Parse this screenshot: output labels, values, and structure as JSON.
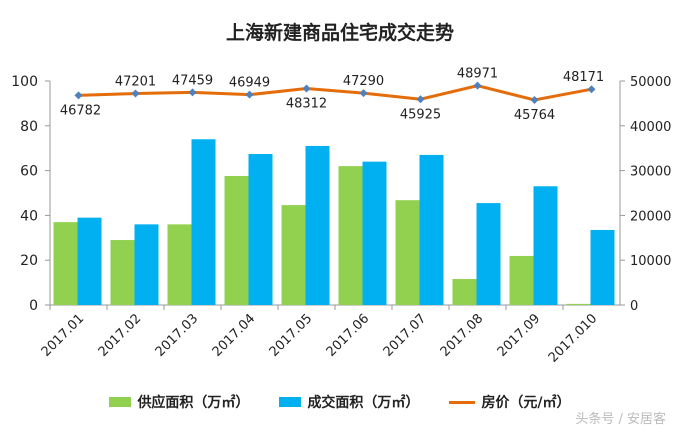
{
  "chart_data": {
    "type": "bar",
    "title": "上海新建商品住宅成交走势",
    "categories": [
      "2017.01",
      "2017.02",
      "2017.03",
      "2017.04",
      "2017.05",
      "2017.06",
      "2017.07",
      "2017.08",
      "2017.09",
      "2017.010"
    ],
    "series": [
      {
        "name": "供应面积（万㎡）",
        "type": "bar",
        "axis": "left",
        "color": "#92d050",
        "values": [
          37,
          29,
          36,
          57.6,
          44.6,
          62,
          46.8,
          11.6,
          21.9,
          0.5
        ]
      },
      {
        "name": "成交面积（万㎡）",
        "type": "bar",
        "axis": "left",
        "color": "#00b0f0",
        "values": [
          39,
          36,
          74,
          67.4,
          71,
          64,
          67,
          45.5,
          53,
          33.5
        ]
      },
      {
        "name": "房价（元/㎡）",
        "type": "line",
        "axis": "right",
        "color": "#e46c0a",
        "marker_color": "#4f81bd",
        "values": [
          46782,
          47201,
          47459,
          46949,
          48312,
          47290,
          45925,
          48971,
          45764,
          48171
        ],
        "labels": [
          "46782",
          "47201",
          "47459",
          "46949",
          "48312",
          "47290",
          "45925",
          "48971",
          "45764",
          "48171"
        ]
      }
    ],
    "ylim": [
      0,
      100
    ],
    "yticks": [
      "0",
      "20",
      "40",
      "60",
      "80",
      "100"
    ],
    "y2lim": [
      0,
      50000
    ],
    "y2ticks": [
      "0",
      "10000",
      "20000",
      "30000",
      "40000",
      "50000"
    ],
    "grid": false,
    "legend": "bottom"
  },
  "watermark": "头条号 / 安居客"
}
